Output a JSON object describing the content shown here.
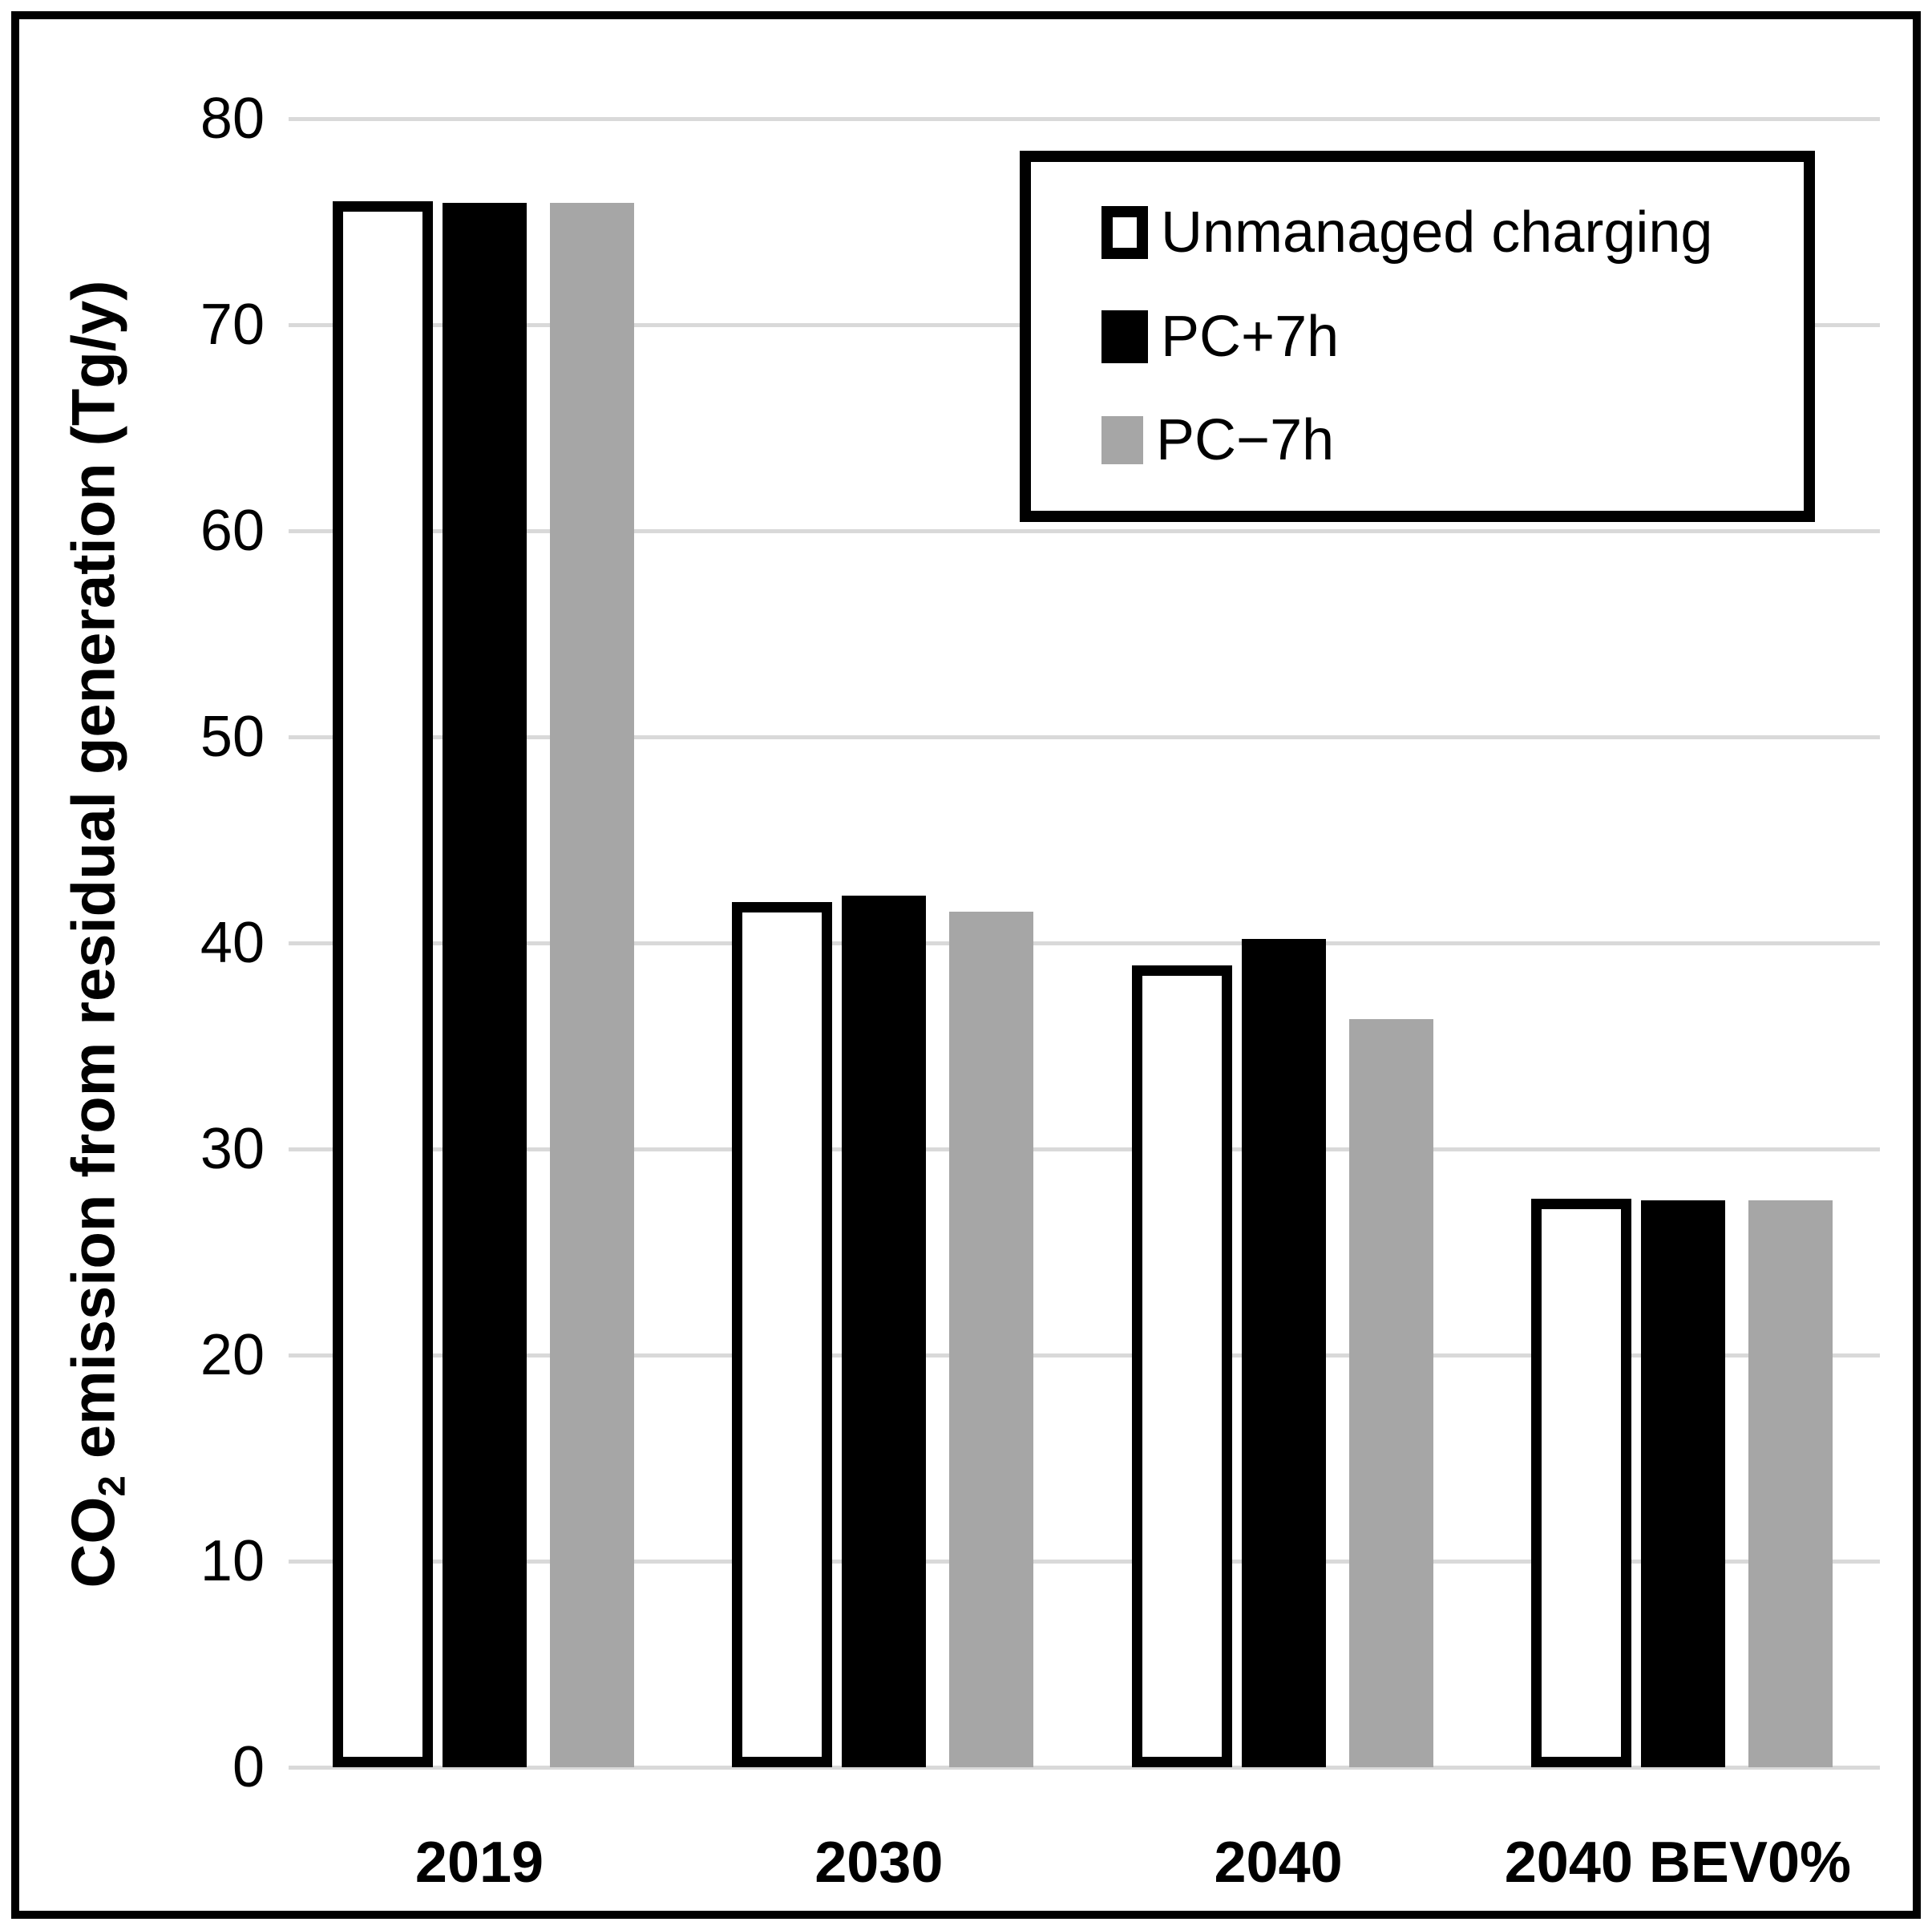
{
  "chart_data": {
    "type": "bar",
    "title": "",
    "categories": [
      "2019",
      "2030",
      "2040",
      "2040 BEV0%"
    ],
    "series": [
      {
        "name": "Unmanaged charging",
        "values": [
          76.0,
          42.0,
          38.9,
          27.6
        ],
        "fill": "#ffffff",
        "stroke": "#000000"
      },
      {
        "name": "PC+7h",
        "values": [
          75.9,
          42.3,
          40.2,
          27.5
        ],
        "fill": "#000000",
        "stroke": null
      },
      {
        "name": "PC−7h",
        "values": [
          75.9,
          41.5,
          36.3,
          27.5
        ],
        "fill": "#a6a6a6",
        "stroke": null
      }
    ],
    "xlabel": "",
    "ylabel": "CO2 emission from residual generation (Tg/y)",
    "ylim": [
      0,
      80
    ],
    "ytick_step": 10,
    "grid": "horizontal-only",
    "legend_position": "top-right"
  },
  "y_axis": {
    "ticks": [
      "0",
      "10",
      "20",
      "30",
      "40",
      "50",
      "60",
      "70",
      "80"
    ],
    "title_prefix": "CO",
    "title_sub": "2",
    "title_rest": " emission from residual generation (Tg/y)"
  },
  "x_axis": {
    "labels": [
      "2019",
      "2030",
      "2040",
      "2040 BEV0%"
    ]
  },
  "legend": {
    "items": [
      {
        "label": "Unmanaged charging",
        "swatch": "white-outlined-square"
      },
      {
        "label": "PC+7h",
        "swatch": "black-square"
      },
      {
        "label": "PC−7h",
        "swatch": "gray-square"
      }
    ]
  },
  "colors": {
    "bar_white_fill": "#ffffff",
    "bar_outline": "#000000",
    "bar_black": "#000000",
    "bar_gray": "#a6a6a6",
    "gridline": "#d9d9d9",
    "frame_border": "#000000",
    "background": "#ffffff",
    "text": "#000000"
  }
}
